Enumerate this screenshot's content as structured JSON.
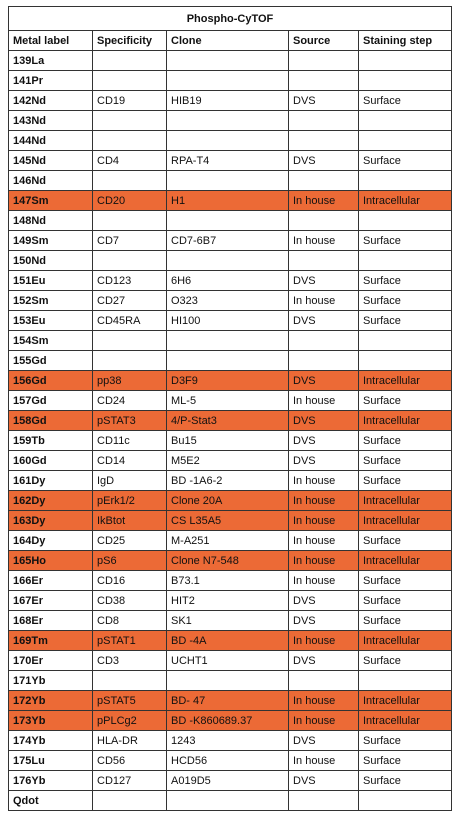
{
  "table": {
    "title": "Phospho-CyTOF",
    "header": [
      "Metal label",
      "Specificity",
      "Clone",
      "Source",
      "Staining step"
    ],
    "highlight_color": "#ec6a36",
    "rows": [
      {
        "cells": [
          "139La",
          null,
          null,
          null,
          null
        ],
        "highlight": false
      },
      {
        "cells": [
          "141Pr",
          null,
          null,
          null,
          null
        ],
        "highlight": false
      },
      {
        "cells": [
          "142Nd",
          "CD19",
          "HIB19",
          "DVS",
          "Surface"
        ],
        "highlight": false
      },
      {
        "cells": [
          "143Nd",
          null,
          null,
          null,
          null
        ],
        "highlight": false
      },
      {
        "cells": [
          "144Nd",
          null,
          null,
          null,
          null
        ],
        "highlight": false
      },
      {
        "cells": [
          "145Nd",
          "CD4",
          "RPA-T4",
          "DVS",
          "Surface"
        ],
        "highlight": false
      },
      {
        "cells": [
          "146Nd",
          null,
          null,
          null,
          null
        ],
        "highlight": false
      },
      {
        "cells": [
          "147Sm",
          "CD20",
          "H1",
          "In house",
          "Intracellular"
        ],
        "highlight": true
      },
      {
        "cells": [
          "148Nd",
          null,
          null,
          null,
          null
        ],
        "highlight": false
      },
      {
        "cells": [
          "149Sm",
          "CD7",
          "CD7-6B7",
          "In house",
          "Surface"
        ],
        "highlight": false
      },
      {
        "cells": [
          "150Nd",
          null,
          null,
          null,
          null
        ],
        "highlight": false
      },
      {
        "cells": [
          "151Eu",
          "CD123",
          "6H6",
          "DVS",
          "Surface"
        ],
        "highlight": false
      },
      {
        "cells": [
          "152Sm",
          "CD27",
          "O323",
          "In house",
          "Surface"
        ],
        "highlight": false
      },
      {
        "cells": [
          "153Eu",
          "CD45RA",
          "HI100",
          "DVS",
          "Surface"
        ],
        "highlight": false
      },
      {
        "cells": [
          "154Sm",
          null,
          null,
          null,
          null
        ],
        "highlight": false
      },
      {
        "cells": [
          "155Gd",
          null,
          null,
          null,
          null
        ],
        "highlight": false
      },
      {
        "cells": [
          "156Gd",
          "pp38",
          "D3F9",
          "DVS",
          "Intracellular"
        ],
        "highlight": true
      },
      {
        "cells": [
          "157Gd",
          "CD24",
          "ML-5",
          "In house",
          "Surface"
        ],
        "highlight": false
      },
      {
        "cells": [
          "158Gd",
          "pSTAT3",
          "4/P-Stat3",
          "DVS",
          "Intracellular"
        ],
        "highlight": true
      },
      {
        "cells": [
          "159Tb",
          "CD11c",
          "Bu15",
          "DVS",
          "Surface"
        ],
        "highlight": false
      },
      {
        "cells": [
          "160Gd",
          "CD14",
          "M5E2",
          "DVS",
          "Surface"
        ],
        "highlight": false
      },
      {
        "cells": [
          "161Dy",
          "IgD",
          "BD -1A6-2",
          "In house",
          "Surface"
        ],
        "highlight": false
      },
      {
        "cells": [
          "162Dy",
          "pErk1/2",
          "Clone 20A",
          "In house",
          "Intracellular"
        ],
        "highlight": true
      },
      {
        "cells": [
          "163Dy",
          "IkBtot",
          "CS L35A5",
          "In house",
          "Intracellular"
        ],
        "highlight": true
      },
      {
        "cells": [
          "164Dy",
          "CD25",
          "M-A251",
          "In house",
          "Surface"
        ],
        "highlight": false
      },
      {
        "cells": [
          "165Ho",
          "pS6",
          "Clone N7-548",
          "In house",
          "Intracellular"
        ],
        "highlight": true
      },
      {
        "cells": [
          "166Er",
          "CD16",
          "B73.1",
          "In house",
          "Surface"
        ],
        "highlight": false
      },
      {
        "cells": [
          "167Er",
          "CD38",
          "HIT2",
          "DVS",
          "Surface"
        ],
        "highlight": false
      },
      {
        "cells": [
          "168Er",
          "CD8",
          "SK1",
          "DVS",
          "Surface"
        ],
        "highlight": false
      },
      {
        "cells": [
          "169Tm",
          "pSTAT1",
          "BD -4A",
          "In house",
          "Intracellular"
        ],
        "highlight": true
      },
      {
        "cells": [
          "170Er",
          "CD3",
          "UCHT1",
          "DVS",
          "Surface"
        ],
        "highlight": false
      },
      {
        "cells": [
          "171Yb",
          null,
          null,
          null,
          null
        ],
        "highlight": false
      },
      {
        "cells": [
          "172Yb",
          "pSTAT5",
          "BD- 47",
          "In house",
          "Intracellular"
        ],
        "highlight": true
      },
      {
        "cells": [
          "173Yb",
          "pPLCg2",
          "BD -K860689.37",
          "In house",
          "Intracellular"
        ],
        "highlight": true
      },
      {
        "cells": [
          "174Yb",
          "HLA-DR",
          "1243",
          "DVS",
          "Surface"
        ],
        "highlight": false
      },
      {
        "cells": [
          "175Lu",
          "CD56",
          "HCD56",
          "In house",
          "Surface"
        ],
        "highlight": false
      },
      {
        "cells": [
          "176Yb",
          "CD127",
          "A019D5",
          "DVS",
          "Surface"
        ],
        "highlight": false
      },
      {
        "cells": [
          "Qdot",
          null,
          null,
          null,
          null
        ],
        "highlight": false
      }
    ]
  }
}
